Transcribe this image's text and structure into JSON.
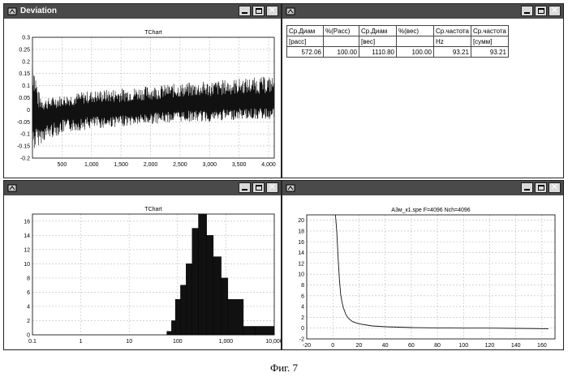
{
  "windows": {
    "deviation": {
      "title": "Deviation",
      "chart_data": {
        "type": "line",
        "title": "TChart",
        "xlim": [
          0,
          4096
        ],
        "ylim": [
          -0.2,
          0.3
        ],
        "x_ticks": [
          500,
          1000,
          1500,
          2000,
          2500,
          3000,
          3500,
          4000
        ],
        "x_tick_labels": [
          "500",
          "1,000",
          "1,500",
          "2,000",
          "2,500",
          "3,000",
          "3,500",
          "4,000"
        ],
        "y_ticks": [
          -0.2,
          -0.15,
          -0.1,
          -0.05,
          0,
          0.05,
          0.1,
          0.15,
          0.2,
          0.25,
          0.3
        ],
        "y_tick_labels": [
          "-0.2",
          "-0.15",
          "-0.1",
          "-0.05",
          "0",
          "0.05",
          "0.1",
          "0.15",
          "0.2",
          "0.25",
          "0.3"
        ],
        "grid": true,
        "series": [
          {
            "x": [
              0,
              100,
              200,
              300,
              400,
              500,
              700,
              1000,
              1500,
              2000,
              2500,
              3000,
              3500,
              4096
            ],
            "y_upper": [
              0.26,
              0.08,
              0.05,
              0.05,
              0.06,
              0.06,
              0.07,
              0.08,
              0.09,
              0.1,
              0.11,
              0.12,
              0.13,
              0.14
            ],
            "y_lower": [
              -0.18,
              -0.15,
              -0.13,
              -0.12,
              -0.11,
              -0.1,
              -0.09,
              -0.08,
              -0.07,
              -0.06,
              -0.05,
              -0.05,
              -0.04,
              -0.04
            ],
            "y_mean": [
              0.0,
              -0.04,
              -0.03,
              -0.02,
              -0.02,
              -0.01,
              -0.01,
              0.0,
              0.0,
              0.01,
              0.02,
              0.02,
              0.03,
              0.03
            ]
          }
        ]
      }
    },
    "stats": {
      "title": "",
      "header_row1": [
        "Ср.Диам",
        "%(Pacc)",
        "Ср.Диам",
        "%(вес)",
        "Ср.частота",
        "Ср.частота"
      ],
      "header_row2": [
        "[pacc]",
        "",
        "[вес]",
        "",
        "Hz",
        "[сумм]"
      ],
      "data_row": [
        "572.06",
        "100.00",
        "1110.80",
        "100.00",
        "93.21",
        "93.21"
      ]
    },
    "histogram": {
      "title": "",
      "chart_data": {
        "type": "bar",
        "title": "TChart",
        "x_scale": "log",
        "xlim": [
          0.1,
          10000
        ],
        "ylim": [
          0,
          17
        ],
        "x_ticks": [
          0.1,
          1,
          10,
          100,
          1000,
          10000
        ],
        "x_tick_labels": [
          "0.1",
          "1",
          "10",
          "100",
          "1,000",
          "10,000"
        ],
        "y_ticks": [
          0,
          2,
          4,
          6,
          8,
          10,
          12,
          14,
          16
        ],
        "y_tick_labels": [
          "0",
          "2",
          "4",
          "6",
          "8",
          "10",
          "12",
          "14",
          "16"
        ],
        "grid": true,
        "bins": [
          {
            "from": 60,
            "to": 75,
            "value": 0.5
          },
          {
            "from": 75,
            "to": 90,
            "value": 2
          },
          {
            "from": 90,
            "to": 115,
            "value": 5
          },
          {
            "from": 115,
            "to": 150,
            "value": 7
          },
          {
            "from": 150,
            "to": 200,
            "value": 10
          },
          {
            "from": 200,
            "to": 270,
            "value": 15
          },
          {
            "from": 270,
            "to": 400,
            "value": 17
          },
          {
            "from": 400,
            "to": 550,
            "value": 14
          },
          {
            "from": 550,
            "to": 800,
            "value": 11
          },
          {
            "from": 800,
            "to": 1100,
            "value": 8
          },
          {
            "from": 1100,
            "to": 2300,
            "value": 5
          },
          {
            "from": 2300,
            "to": 4000,
            "value": 1.2
          },
          {
            "from": 4000,
            "to": 10000,
            "value": 1.2
          }
        ]
      }
    },
    "spectrum": {
      "title": "",
      "chart_data": {
        "type": "line",
        "title": "A3м_к1.spe F=4096 Nch=4096",
        "xlim": [
          -20,
          170
        ],
        "ylim": [
          -2,
          21
        ],
        "x_ticks": [
          -20,
          0,
          20,
          40,
          60,
          80,
          100,
          120,
          140,
          160
        ],
        "x_tick_labels": [
          "-20",
          "0",
          "20",
          "40",
          "60",
          "80",
          "100",
          "120",
          "140",
          "160"
        ],
        "y_ticks": [
          -2,
          0,
          2,
          4,
          6,
          8,
          10,
          12,
          14,
          16,
          18,
          20
        ],
        "y_tick_labels": [
          "-2",
          "0",
          "2",
          "4",
          "6",
          "8",
          "10",
          "12",
          "14",
          "16",
          "18",
          "20"
        ],
        "grid": true,
        "series": [
          {
            "x": [
              2,
              3,
              4,
              5,
              6,
              7,
              8,
              10,
              12,
              15,
              20,
              30,
              40,
              60,
              80,
              100,
              120,
              140,
              165
            ],
            "y": [
              21,
              18,
              13,
              9,
              6.2,
              4.8,
              3.8,
              2.5,
              1.8,
              1.2,
              0.8,
              0.4,
              0.25,
              0.1,
              0.05,
              0.0,
              0.0,
              -0.05,
              -0.1
            ]
          }
        ]
      }
    }
  },
  "caption": "Фиг. 7"
}
